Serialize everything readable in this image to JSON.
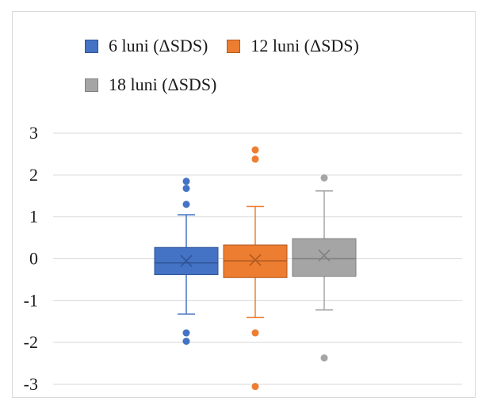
{
  "chart_data": {
    "type": "box",
    "title": "",
    "xlabel": "",
    "ylabel": "",
    "ylim": [
      -3,
      3
    ],
    "yticks": [
      "3",
      "2",
      "1",
      "0",
      "-1",
      "-2",
      "-3"
    ],
    "grid": true,
    "legend_position": "top",
    "series": [
      {
        "name": "6 luni (ΔSDS)",
        "color": "#4472c4",
        "min": -1.32,
        "q1": -0.38,
        "median": -0.1,
        "q3": 0.27,
        "max": 1.05,
        "mean": -0.05,
        "outliers": [
          1.85,
          1.68,
          1.3,
          -1.77,
          -1.97
        ]
      },
      {
        "name": "12 luni (ΔSDS)",
        "color": "#ed7d31",
        "min": -1.4,
        "q1": -0.45,
        "median": -0.05,
        "q3": 0.33,
        "max": 1.25,
        "mean": -0.03,
        "outliers": [
          2.6,
          2.38,
          -1.77,
          -3.05
        ]
      },
      {
        "name": "18 luni (ΔSDS)",
        "color": "#a5a5a5",
        "min": -1.22,
        "q1": -0.42,
        "median": 0.0,
        "q3": 0.48,
        "max": 1.62,
        "mean": 0.08,
        "outliers": [
          1.93,
          -2.37
        ]
      }
    ]
  }
}
